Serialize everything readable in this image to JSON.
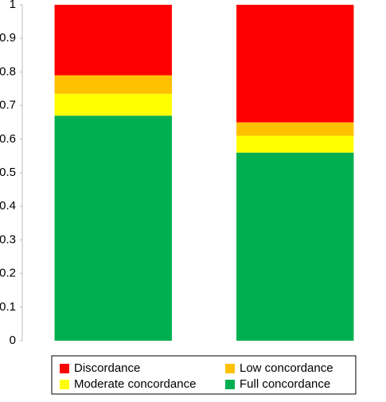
{
  "chart_data": {
    "type": "stacked_bar",
    "categories": [
      null,
      null
    ],
    "series": [
      {
        "name": "Discordance",
        "color": "#ff0000",
        "values": [
          0.21,
          0.35
        ]
      },
      {
        "name": "Low concordance",
        "color": "#ffc000",
        "values": [
          0.055,
          0.04
        ]
      },
      {
        "name": "Moderate concordance",
        "color": "#ffff00",
        "values": [
          0.065,
          0.05
        ]
      },
      {
        "name": "Full concordance",
        "color": "#00b050",
        "values": [
          0.67,
          0.56
        ]
      }
    ],
    "ylim": [
      0,
      1
    ],
    "yticks": [
      0,
      0.1,
      0.2,
      0.3,
      0.4,
      0.5,
      0.6,
      0.7,
      0.8,
      0.9,
      1
    ],
    "grid": false,
    "legend": "bottom"
  }
}
